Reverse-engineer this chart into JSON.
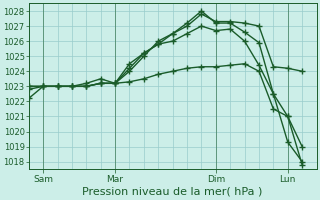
{
  "background_color": "#cceee8",
  "grid_color": "#99cccc",
  "line_color": "#1a5c2a",
  "xlabel": "Pression niveau de la mer( hPa )",
  "xlabel_fontsize": 8,
  "yticks": [
    1018,
    1019,
    1020,
    1021,
    1022,
    1023,
    1024,
    1025,
    1026,
    1027,
    1028
  ],
  "ylim": [
    1017.5,
    1028.5
  ],
  "xtick_labels": [
    "Sam",
    "Mar",
    "Dim",
    "Lun"
  ],
  "xtick_positions": [
    1,
    6,
    13,
    18
  ],
  "xlim": [
    0,
    20
  ],
  "lines": [
    {
      "x": [
        0,
        1,
        2,
        3,
        4,
        5,
        6,
        7,
        8,
        9,
        10,
        11,
        12,
        13,
        14,
        15,
        16,
        17,
        18,
        19
      ],
      "y": [
        1022.8,
        1023.0,
        1023.0,
        1023.0,
        1023.2,
        1023.5,
        1023.2,
        1024.5,
        1025.2,
        1025.8,
        1026.5,
        1027.0,
        1027.8,
        1027.3,
        1027.3,
        1027.2,
        1027.0,
        1024.3,
        1024.2,
        1024.0
      ]
    },
    {
      "x": [
        0,
        1,
        2,
        3,
        4,
        5,
        6,
        7,
        8,
        9,
        10,
        11,
        12,
        13,
        14,
        15,
        16,
        17,
        18,
        19
      ],
      "y": [
        1023.0,
        1023.0,
        1023.0,
        1023.0,
        1023.0,
        1023.2,
        1023.2,
        1024.0,
        1025.0,
        1026.0,
        1026.5,
        1027.2,
        1028.0,
        1027.2,
        1027.2,
        1026.6,
        1025.9,
        1022.5,
        1019.3,
        1018.0
      ]
    },
    {
      "x": [
        0,
        1,
        2,
        3,
        4,
        5,
        6,
        7,
        8,
        9,
        10,
        11,
        12,
        13,
        14,
        15,
        16,
        17,
        18,
        19
      ],
      "y": [
        1023.0,
        1023.0,
        1023.0,
        1023.0,
        1023.0,
        1023.2,
        1023.2,
        1023.3,
        1023.5,
        1023.8,
        1024.0,
        1024.2,
        1024.3,
        1024.3,
        1024.4,
        1024.5,
        1024.0,
        1021.5,
        1021.0,
        1017.8
      ]
    },
    {
      "x": [
        0,
        1,
        2,
        3,
        4,
        5,
        6,
        7,
        8,
        9,
        10,
        11,
        12,
        13,
        14,
        15,
        16,
        17,
        18,
        19
      ],
      "y": [
        1022.2,
        1023.0,
        1023.0,
        1023.0,
        1023.0,
        1023.2,
        1023.2,
        1024.2,
        1025.2,
        1025.8,
        1026.0,
        1026.5,
        1027.0,
        1026.7,
        1026.8,
        1026.0,
        1024.4,
        1022.5,
        1021.0,
        1019.0
      ]
    }
  ],
  "marker": "+",
  "markersize": 4,
  "linewidth": 1.0
}
